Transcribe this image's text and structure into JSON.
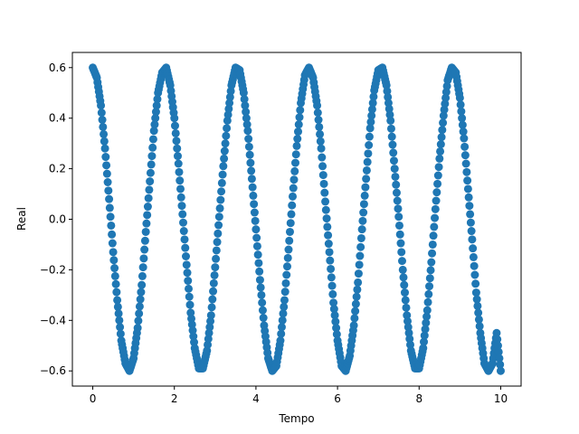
{
  "chart_data": {
    "type": "scatter",
    "title": "",
    "xlabel": "Tempo",
    "ylabel": "Real",
    "xlim": [
      -0.5,
      10.5
    ],
    "ylim": [
      -0.66,
      0.66
    ],
    "xticks": [
      0,
      2,
      4,
      6,
      8,
      10
    ],
    "yticks": [
      -0.6,
      -0.4,
      -0.2,
      0.0,
      0.2,
      0.4,
      0.6
    ],
    "xtick_labels": [
      "0",
      "2",
      "4",
      "6",
      "8",
      "10"
    ],
    "ytick_labels": [
      "−0.6",
      "−0.4",
      "−0.2",
      "0.0",
      "0.2",
      "0.4",
      "0.6"
    ],
    "grid": false,
    "marker_color": "#1f77b4",
    "series": [
      {
        "x": [
          0,
          0.1,
          0.2,
          0.3,
          0.4,
          0.5,
          0.6,
          0.7,
          0.8,
          0.9,
          1,
          1.1,
          1.2,
          1.3,
          1.4,
          1.5,
          1.6,
          1.7,
          1.8,
          1.9,
          2,
          2.1,
          2.2,
          2.3,
          2.4,
          2.5,
          2.6,
          2.7,
          2.8,
          2.9,
          3,
          3.1,
          3.2,
          3.3,
          3.4,
          3.5,
          3.6,
          3.7,
          3.8,
          3.9,
          4,
          4.1,
          4.2,
          4.3,
          4.4,
          4.5,
          4.6,
          4.7,
          4.8,
          4.9,
          5,
          5.1,
          5.2,
          5.3,
          5.4,
          5.5,
          5.6,
          5.7,
          5.8,
          5.9,
          6,
          6.1,
          6.2,
          6.3,
          6.4,
          6.5,
          6.6,
          6.7,
          6.8,
          6.9,
          7,
          7.1,
          7.2,
          7.3,
          7.4,
          7.5,
          7.6,
          7.7,
          7.8,
          7.9,
          8,
          8.1,
          8.2,
          8.3,
          8.4,
          8.5,
          8.6,
          8.7,
          8.8,
          8.9,
          9,
          9.1,
          9.2,
          9.3,
          9.4,
          9.5,
          9.6,
          9.7,
          9.8,
          9.9,
          10
        ],
        "y": [
          0.6,
          0.56,
          0.45,
          0.28,
          0.08,
          -0.13,
          -0.32,
          -0.48,
          -0.57,
          -0.6,
          -0.55,
          -0.43,
          -0.26,
          -0.05,
          0.15,
          0.35,
          0.5,
          0.58,
          0.6,
          0.53,
          0.4,
          0.22,
          0.02,
          -0.18,
          -0.37,
          -0.51,
          -0.59,
          -0.59,
          -0.52,
          -0.38,
          -0.19,
          0.01,
          0.21,
          0.39,
          0.53,
          0.6,
          0.59,
          0.5,
          0.35,
          0.16,
          -0.04,
          -0.24,
          -0.42,
          -0.55,
          -0.6,
          -0.58,
          -0.48,
          -0.32,
          -0.12,
          0.09,
          0.29,
          0.46,
          0.57,
          0.6,
          0.56,
          0.45,
          0.28,
          0.07,
          -0.13,
          -0.33,
          -0.48,
          -0.58,
          -0.6,
          -0.54,
          -0.42,
          -0.25,
          -0.04,
          0.16,
          0.36,
          0.51,
          0.59,
          0.6,
          0.53,
          0.39,
          0.2,
          0.01,
          -0.2,
          -0.38,
          -0.52,
          -0.59,
          -0.59,
          -0.51,
          -0.36,
          -0.17,
          0.04,
          0.24,
          0.41,
          0.55,
          0.6,
          0.58,
          0.48,
          0.32,
          0.12,
          -0.08,
          -0.29,
          -0.45,
          -0.57,
          -0.6,
          -0.57,
          -0.45,
          -0.6
        ]
      }
    ]
  }
}
